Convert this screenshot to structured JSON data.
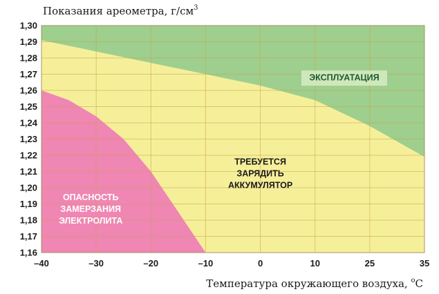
{
  "chart_data": {
    "type": "area",
    "title": "",
    "ylabel": "Показания ареометра, г/см",
    "ylabel_sup": "3",
    "xlabel": "Температура окружающего воздуха,",
    "xlabel_sup": "o",
    "xlabel_unit": "C",
    "x_tick_labels": [
      "–40",
      "–30",
      "–20",
      "–10",
      "0",
      "10",
      "25",
      "35"
    ],
    "y_tick_labels": [
      "1,16",
      "1,17",
      "1,18",
      "1,19",
      "1,20",
      "1,21",
      "1,22",
      "1,23",
      "1,24",
      "1,25",
      "1,26",
      "1,27",
      "1,28",
      "1,29",
      "1,30"
    ],
    "ylim": [
      1.16,
      1.3
    ],
    "grid": true,
    "zones": [
      {
        "name": "ЭКСПЛУАТАЦИЯ",
        "label_lines": [
          "ЭКСПЛУАТАЦИЯ"
        ],
        "color": "#9ecf8e",
        "label_color": "#1f5a32",
        "label_box": "#d7ecc3",
        "boundary": [
          {
            "x": "–40",
            "y": 1.291
          },
          {
            "x": "–30",
            "y": 1.284
          },
          {
            "x": "–20",
            "y": 1.277
          },
          {
            "x": "–10",
            "y": 1.27
          },
          {
            "x": "0",
            "y": 1.263
          },
          {
            "x": "10",
            "y": 1.254
          },
          {
            "x": "25",
            "y": 1.238
          },
          {
            "x": "35",
            "y": 1.219
          }
        ]
      },
      {
        "name": "ТРЕБУЕТСЯ ЗАРЯДИТЬ АККУМУЛЯТОР",
        "label_lines": [
          "ТРЕБУЕТСЯ",
          "ЗАРЯДИТЬ",
          "АККУМУЛЯТОР"
        ],
        "color": "#f6ef9a",
        "label_color": "#1a1a1a"
      },
      {
        "name": "ОПАСНОСТЬ ЗАМЕРЗАНИЯ ЭЛЕКТРОЛИТА",
        "label_lines": [
          "ОПАСНОСТЬ",
          "ЗАМЕРЗАНИЯ",
          "ЭЛЕКТРОЛИТА"
        ],
        "color": "#ef86b3",
        "label_color": "#ffffff",
        "boundary": [
          {
            "x": "–40",
            "y": 1.26
          },
          {
            "x": "–35",
            "y": 1.254
          },
          {
            "x": "–30",
            "y": 1.244
          },
          {
            "x": "–25",
            "y": 1.23
          },
          {
            "x": "–20",
            "y": 1.21
          },
          {
            "x": "–15",
            "y": 1.185
          },
          {
            "x": "–10",
            "y": 1.16
          }
        ]
      }
    ]
  }
}
